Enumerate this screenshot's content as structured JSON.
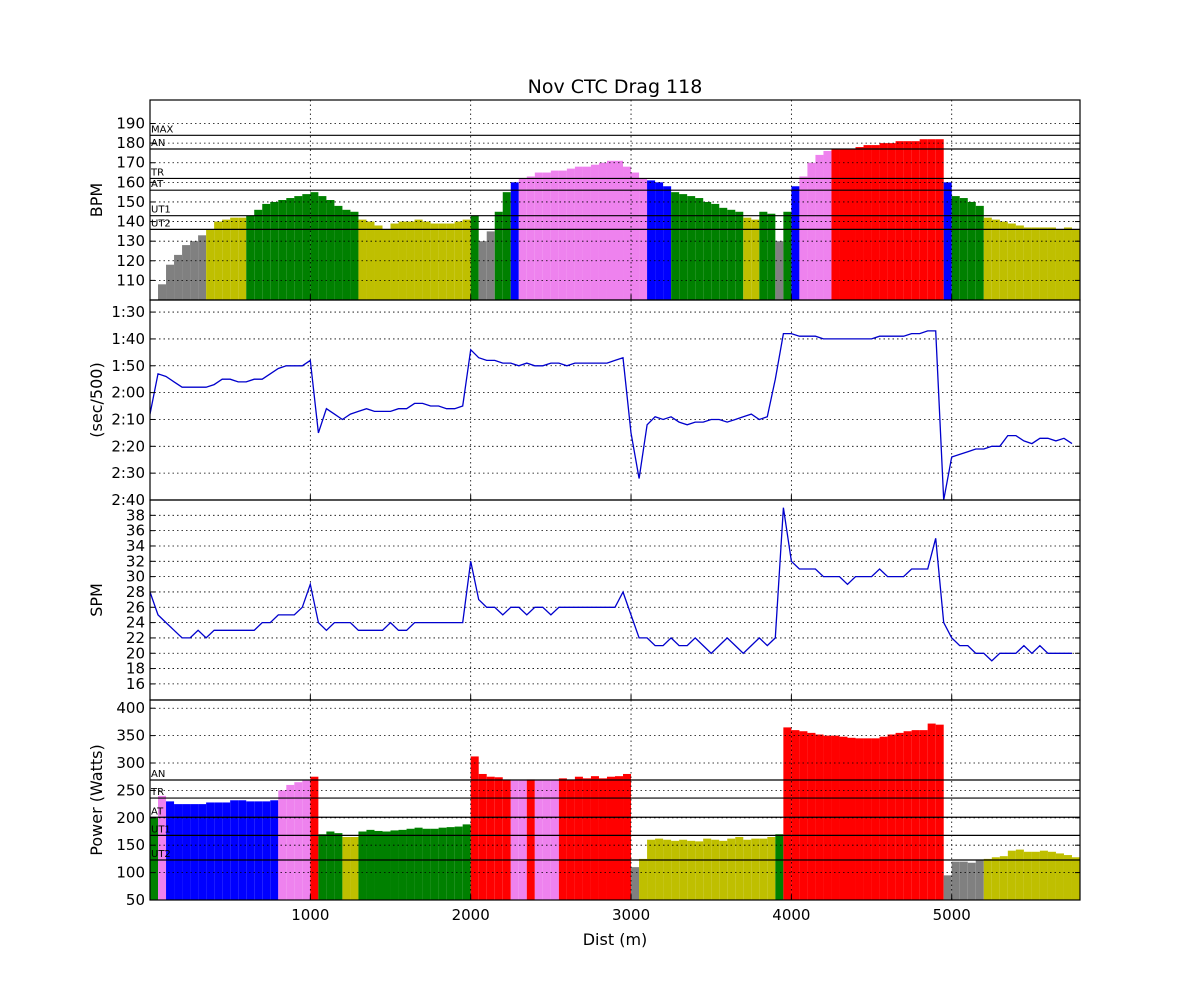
{
  "chart_data": [
    {
      "type": "bar",
      "title": "Nov CTC Drag 118",
      "ylabel": "BPM",
      "xlim": [
        0,
        5800
      ],
      "xticks": [
        1000,
        2000,
        3000,
        4000,
        5000
      ],
      "ylim": [
        100,
        202
      ],
      "yticks": [
        110,
        120,
        130,
        140,
        150,
        160,
        170,
        180,
        190
      ],
      "grid": true,
      "zones": [
        {
          "name": "UT2",
          "value": 136
        },
        {
          "name": "UT1",
          "value": 143
        },
        {
          "name": "AT",
          "value": 156
        },
        {
          "name": "TR",
          "value": 162
        },
        {
          "name": "AN",
          "value": 177
        },
        {
          "name": "MAX",
          "value": 184
        }
      ],
      "zone_colors": [
        "gray",
        "#bfbf00",
        "green",
        "blue",
        "violet",
        "red"
      ],
      "x": [
        0,
        50,
        100,
        150,
        200,
        250,
        300,
        350,
        400,
        450,
        500,
        550,
        600,
        650,
        700,
        750,
        800,
        850,
        900,
        950,
        1000,
        1050,
        1100,
        1150,
        1200,
        1250,
        1300,
        1350,
        1400,
        1450,
        1500,
        1550,
        1600,
        1650,
        1700,
        1750,
        1800,
        1850,
        1900,
        1950,
        2000,
        2050,
        2100,
        2150,
        2200,
        2250,
        2300,
        2350,
        2400,
        2450,
        2500,
        2550,
        2600,
        2650,
        2700,
        2750,
        2800,
        2850,
        2900,
        2950,
        3000,
        3050,
        3100,
        3150,
        3200,
        3250,
        3300,
        3350,
        3400,
        3450,
        3500,
        3550,
        3600,
        3650,
        3700,
        3750,
        3800,
        3850,
        3900,
        3950,
        4000,
        4050,
        4100,
        4150,
        4200,
        4250,
        4300,
        4350,
        4400,
        4450,
        4500,
        4550,
        4600,
        4650,
        4700,
        4750,
        4800,
        4850,
        4900,
        4950,
        5000,
        5050,
        5100,
        5150,
        5200,
        5250,
        5300,
        5350,
        5400,
        5450,
        5500,
        5550,
        5600,
        5650,
        5700,
        5750
      ],
      "values": [
        100,
        108,
        118,
        123,
        128,
        130,
        133,
        136,
        140,
        141,
        142,
        142,
        143,
        146,
        149,
        150,
        151,
        152,
        153,
        154,
        155,
        153,
        151,
        148,
        146,
        145,
        141,
        140,
        138,
        136,
        139,
        140,
        140,
        141,
        140,
        139,
        139,
        139,
        140,
        141,
        143,
        130,
        135,
        145,
        155,
        160,
        162,
        163,
        165,
        165,
        166,
        166,
        167,
        168,
        168,
        169,
        170,
        171,
        171,
        168,
        165,
        162,
        161,
        160,
        158,
        155,
        154,
        153,
        152,
        150,
        149,
        147,
        146,
        145,
        142,
        141,
        145,
        144,
        130,
        145,
        158,
        163,
        170,
        174,
        176,
        177,
        177,
        177,
        178,
        179,
        179,
        180,
        180,
        181,
        181,
        181,
        182,
        182,
        182,
        160,
        153,
        152,
        150,
        148,
        142,
        141,
        140,
        139,
        138,
        137,
        137,
        137,
        137,
        136,
        137,
        136
      ]
    },
    {
      "type": "line",
      "ylabel": "(sec/500)",
      "color": "#0000cc",
      "xlim": [
        0,
        5800
      ],
      "xticks": [
        1000,
        2000,
        3000,
        4000,
        5000
      ],
      "ylim": [
        160,
        85.5
      ],
      "grid": true,
      "yticks": [
        {
          "value": 90,
          "label": "1:30"
        },
        {
          "value": 100,
          "label": "1:40"
        },
        {
          "value": 110,
          "label": "1:50"
        },
        {
          "value": 120,
          "label": "2:00"
        },
        {
          "value": 130,
          "label": "2:10"
        },
        {
          "value": 140,
          "label": "2:20"
        },
        {
          "value": 150,
          "label": "2:30"
        },
        {
          "value": 160,
          "label": "2:40"
        }
      ],
      "x": [
        0,
        50,
        100,
        150,
        200,
        250,
        300,
        350,
        400,
        450,
        500,
        550,
        600,
        650,
        700,
        750,
        800,
        850,
        900,
        950,
        1000,
        1050,
        1100,
        1150,
        1200,
        1250,
        1300,
        1350,
        1400,
        1450,
        1500,
        1550,
        1600,
        1650,
        1700,
        1750,
        1800,
        1850,
        1900,
        1950,
        2000,
        2050,
        2100,
        2150,
        2200,
        2250,
        2300,
        2350,
        2400,
        2450,
        2500,
        2550,
        2600,
        2650,
        2700,
        2750,
        2800,
        2850,
        2900,
        2950,
        3000,
        3050,
        3100,
        3150,
        3200,
        3250,
        3300,
        3350,
        3400,
        3450,
        3500,
        3550,
        3600,
        3650,
        3700,
        3750,
        3800,
        3850,
        3900,
        3950,
        4000,
        4050,
        4100,
        4150,
        4200,
        4250,
        4300,
        4350,
        4400,
        4450,
        4500,
        4550,
        4600,
        4650,
        4700,
        4750,
        4800,
        4850,
        4900,
        4950,
        5000,
        5050,
        5100,
        5150,
        5200,
        5250,
        5300,
        5350,
        5400,
        5450,
        5500,
        5550,
        5600,
        5650,
        5700,
        5750
      ],
      "values": [
        128,
        113,
        114,
        116,
        118,
        118,
        118,
        118,
        117,
        115,
        115,
        116,
        116,
        115,
        115,
        113,
        111,
        110,
        110,
        110,
        108,
        135,
        126,
        128,
        130,
        128,
        127,
        126,
        127,
        127,
        127,
        126,
        126,
        124,
        124,
        125,
        125,
        126,
        126,
        125,
        104,
        107,
        108,
        108,
        109,
        109,
        110,
        109,
        110,
        110,
        109,
        109,
        110,
        109,
        109,
        109,
        109,
        109,
        108,
        107,
        135,
        152,
        132,
        129,
        130,
        129,
        131,
        132,
        131,
        131,
        130,
        130,
        131,
        130,
        129,
        128,
        130,
        129,
        115,
        98,
        98,
        99,
        99,
        99,
        100,
        100,
        100,
        100,
        100,
        100,
        100,
        99,
        99,
        99,
        99,
        98,
        98,
        97,
        97,
        160,
        144,
        143,
        142,
        141,
        141,
        140,
        140,
        136,
        136,
        138,
        139,
        137,
        137,
        138,
        137,
        139
      ]
    },
    {
      "type": "line",
      "ylabel": "SPM",
      "color": "#0000cc",
      "xlim": [
        0,
        5800
      ],
      "xticks": [
        1000,
        2000,
        3000,
        4000,
        5000
      ],
      "ylim": [
        13.9,
        40
      ],
      "yticks": [
        16,
        18,
        20,
        22,
        24,
        26,
        28,
        30,
        32,
        34,
        36,
        38
      ],
      "grid": true,
      "x": [
        0,
        50,
        100,
        150,
        200,
        250,
        300,
        350,
        400,
        450,
        500,
        550,
        600,
        650,
        700,
        750,
        800,
        850,
        900,
        950,
        1000,
        1050,
        1100,
        1150,
        1200,
        1250,
        1300,
        1350,
        1400,
        1450,
        1500,
        1550,
        1600,
        1650,
        1700,
        1750,
        1800,
        1850,
        1900,
        1950,
        2000,
        2050,
        2100,
        2150,
        2200,
        2250,
        2300,
        2350,
        2400,
        2450,
        2500,
        2550,
        2600,
        2650,
        2700,
        2750,
        2800,
        2850,
        2900,
        2950,
        3000,
        3050,
        3100,
        3150,
        3200,
        3250,
        3300,
        3350,
        3400,
        3450,
        3500,
        3550,
        3600,
        3650,
        3700,
        3750,
        3800,
        3850,
        3900,
        3950,
        4000,
        4050,
        4100,
        4150,
        4200,
        4250,
        4300,
        4350,
        4400,
        4450,
        4500,
        4550,
        4600,
        4650,
        4700,
        4750,
        4800,
        4850,
        4900,
        4950,
        5000,
        5050,
        5100,
        5150,
        5200,
        5250,
        5300,
        5350,
        5400,
        5450,
        5500,
        5550,
        5600,
        5650,
        5700,
        5750
      ],
      "values": [
        28,
        25,
        24,
        23,
        22,
        22,
        23,
        22,
        23,
        23,
        23,
        23,
        23,
        23,
        24,
        24,
        25,
        25,
        25,
        26,
        29,
        24,
        23,
        24,
        24,
        24,
        23,
        23,
        23,
        23,
        24,
        23,
        23,
        24,
        24,
        24,
        24,
        24,
        24,
        24,
        32,
        27,
        26,
        26,
        25,
        26,
        26,
        25,
        26,
        26,
        25,
        26,
        26,
        26,
        26,
        26,
        26,
        26,
        26,
        28,
        25,
        22,
        22,
        21,
        21,
        22,
        21,
        21,
        22,
        21,
        20,
        21,
        22,
        21,
        20,
        21,
        22,
        21,
        22,
        39,
        32,
        31,
        31,
        31,
        30,
        30,
        30,
        29,
        30,
        30,
        30,
        31,
        30,
        30,
        30,
        31,
        31,
        31,
        35,
        24,
        22,
        21,
        21,
        20,
        20,
        19,
        20,
        20,
        20,
        21,
        20,
        21,
        20,
        20,
        20,
        20
      ]
    },
    {
      "type": "bar",
      "ylabel": "Power (Watts)",
      "xlabel": "Dist (m)",
      "xlim": [
        0,
        5800
      ],
      "xticks": [
        1000,
        2000,
        3000,
        4000,
        5000
      ],
      "ylim": [
        50,
        415
      ],
      "yticks": [
        50,
        100,
        150,
        200,
        250,
        300,
        350,
        400
      ],
      "grid": true,
      "zones": [
        {
          "name": "UT2",
          "value": 123
        },
        {
          "name": "UT1",
          "value": 168
        },
        {
          "name": "AT",
          "value": 201
        },
        {
          "name": "TR",
          "value": 236
        },
        {
          "name": "AN",
          "value": 269
        }
      ],
      "zone_colors": [
        "gray",
        "#bfbf00",
        "green",
        "blue",
        "violet",
        "red"
      ],
      "x": [
        0,
        50,
        100,
        150,
        200,
        250,
        300,
        350,
        400,
        450,
        500,
        550,
        600,
        650,
        700,
        750,
        800,
        850,
        900,
        950,
        1000,
        1050,
        1100,
        1150,
        1200,
        1250,
        1300,
        1350,
        1400,
        1450,
        1500,
        1550,
        1600,
        1650,
        1700,
        1750,
        1800,
        1850,
        1900,
        1950,
        2000,
        2050,
        2100,
        2150,
        2200,
        2250,
        2300,
        2350,
        2400,
        2450,
        2500,
        2550,
        2600,
        2650,
        2700,
        2750,
        2800,
        2850,
        2900,
        2950,
        3000,
        3050,
        3100,
        3150,
        3200,
        3250,
        3300,
        3350,
        3400,
        3450,
        3500,
        3550,
        3600,
        3650,
        3700,
        3750,
        3800,
        3850,
        3900,
        3950,
        4000,
        4050,
        4100,
        4150,
        4200,
        4250,
        4300,
        4350,
        4400,
        4450,
        4500,
        4550,
        4600,
        4650,
        4700,
        4750,
        4800,
        4850,
        4900,
        4950,
        5000,
        5050,
        5100,
        5150,
        5200,
        5250,
        5300,
        5350,
        5400,
        5450,
        5500,
        5550,
        5600,
        5650,
        5700,
        5750
      ],
      "values": [
        200,
        240,
        230,
        225,
        225,
        225,
        225,
        228,
        228,
        228,
        232,
        232,
        230,
        230,
        230,
        232,
        250,
        260,
        265,
        268,
        275,
        170,
        175,
        172,
        165,
        165,
        175,
        178,
        176,
        175,
        177,
        178,
        180,
        182,
        180,
        180,
        182,
        183,
        184,
        188,
        312,
        280,
        275,
        274,
        270,
        268,
        268,
        270,
        268,
        268,
        268,
        272,
        270,
        275,
        272,
        276,
        272,
        275,
        276,
        280,
        110,
        125,
        160,
        162,
        160,
        158,
        160,
        158,
        157,
        162,
        160,
        158,
        162,
        165,
        160,
        162,
        162,
        165,
        170,
        365,
        360,
        358,
        355,
        352,
        350,
        350,
        348,
        346,
        345,
        345,
        345,
        348,
        352,
        355,
        358,
        360,
        360,
        372,
        370,
        95,
        120,
        120,
        118,
        122,
        125,
        128,
        130,
        140,
        142,
        138,
        138,
        140,
        138,
        135,
        132,
        128
      ]
    }
  ]
}
